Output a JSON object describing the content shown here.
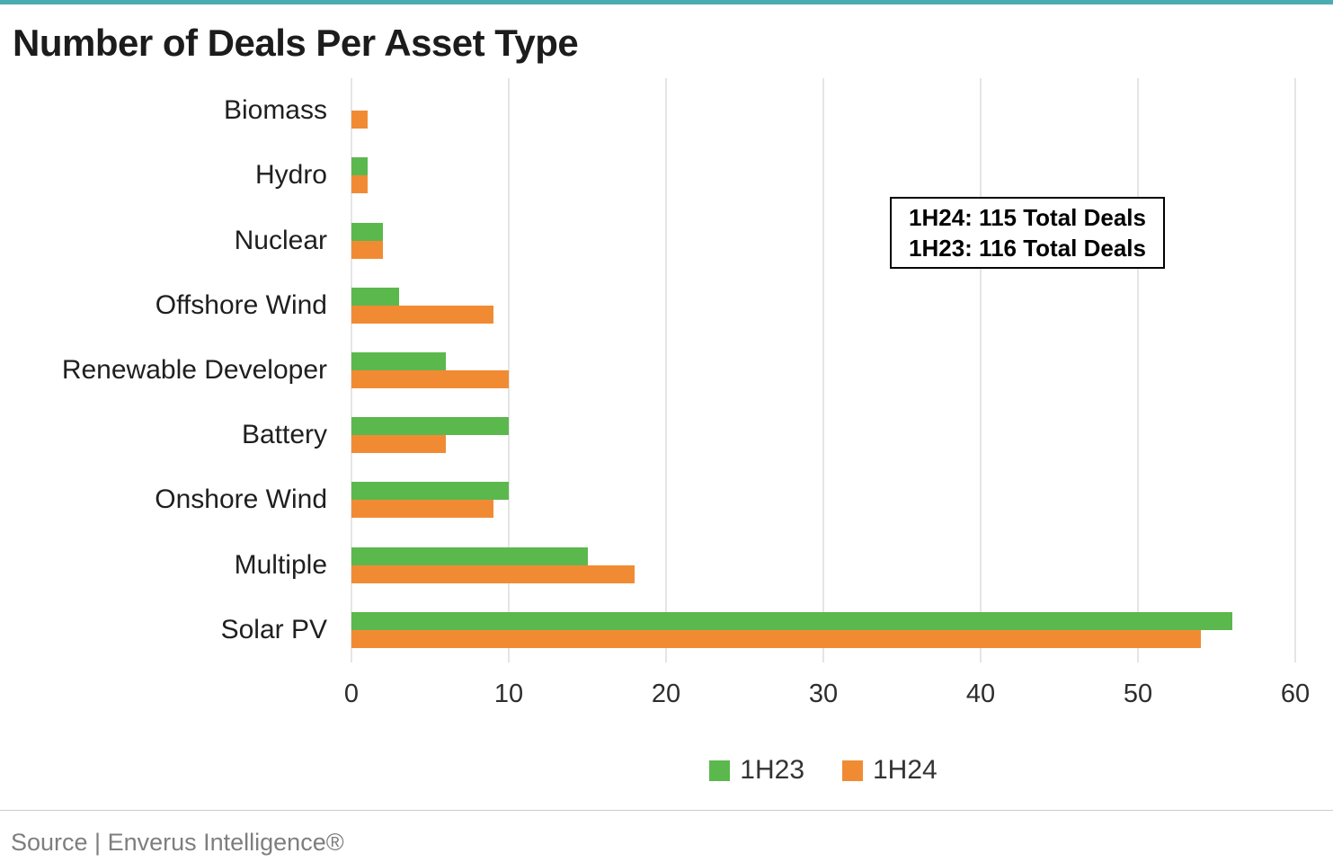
{
  "accent_bar_color": "#4aacb3",
  "title": "Number of Deals Per Asset Type",
  "chart_data": {
    "type": "bar",
    "orientation": "horizontal",
    "title": "Number of Deals Per Asset Type",
    "xlabel": "",
    "ylabel": "",
    "xlim": [
      0,
      60
    ],
    "x_ticks": [
      0,
      10,
      20,
      30,
      40,
      50,
      60
    ],
    "grid": true,
    "legend_position": "bottom",
    "categories": [
      "Biomass",
      "Hydro",
      "Nuclear",
      "Offshore Wind",
      "Renewable Developer",
      "Battery",
      "Onshore Wind",
      "Multiple",
      "Solar PV"
    ],
    "series": [
      {
        "name": "1H23",
        "color": "#5bb84c",
        "values": [
          0,
          1,
          2,
          3,
          6,
          10,
          10,
          15,
          56
        ]
      },
      {
        "name": "1H24",
        "color": "#f18b33",
        "values": [
          1,
          1,
          2,
          9,
          10,
          6,
          9,
          18,
          54
        ]
      }
    ]
  },
  "annotation": {
    "line1": "1H24: 115 Total Deals",
    "line2": "1H23: 116 Total Deals"
  },
  "legend": [
    {
      "label": "1H23",
      "color": "#5bb84c"
    },
    {
      "label": "1H24",
      "color": "#f18b33"
    }
  ],
  "footer": {
    "source": "Source | Enverus Intelligence®"
  }
}
